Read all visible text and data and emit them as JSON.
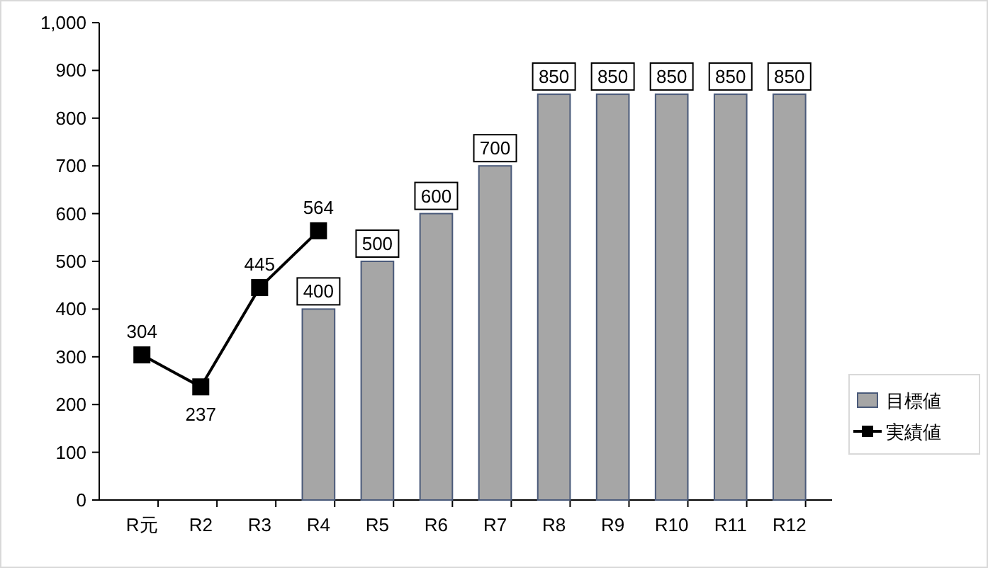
{
  "chart_data": {
    "type": "bar",
    "categories": [
      "R元",
      "R2",
      "R3",
      "R4",
      "R5",
      "R6",
      "R7",
      "R8",
      "R9",
      "R10",
      "R11",
      "R12"
    ],
    "series": [
      {
        "name": "目標値",
        "color": "#a6a6a6",
        "values": [
          null,
          null,
          null,
          400,
          500,
          600,
          700,
          850,
          850,
          850,
          850,
          850
        ]
      },
      {
        "name": "実績値",
        "type": "line",
        "color": "#000000",
        "values": [
          304,
          237,
          445,
          564,
          null,
          null,
          null,
          null,
          null,
          null,
          null,
          null
        ]
      }
    ],
    "ylim": [
      0,
      1000
    ],
    "yticks": [
      0,
      100,
      200,
      300,
      400,
      500,
      600,
      700,
      800,
      900,
      {
        "value": 1000,
        "label": "1,000"
      }
    ],
    "data_labels": true,
    "legend": "right",
    "marker": "square",
    "grid": false
  }
}
